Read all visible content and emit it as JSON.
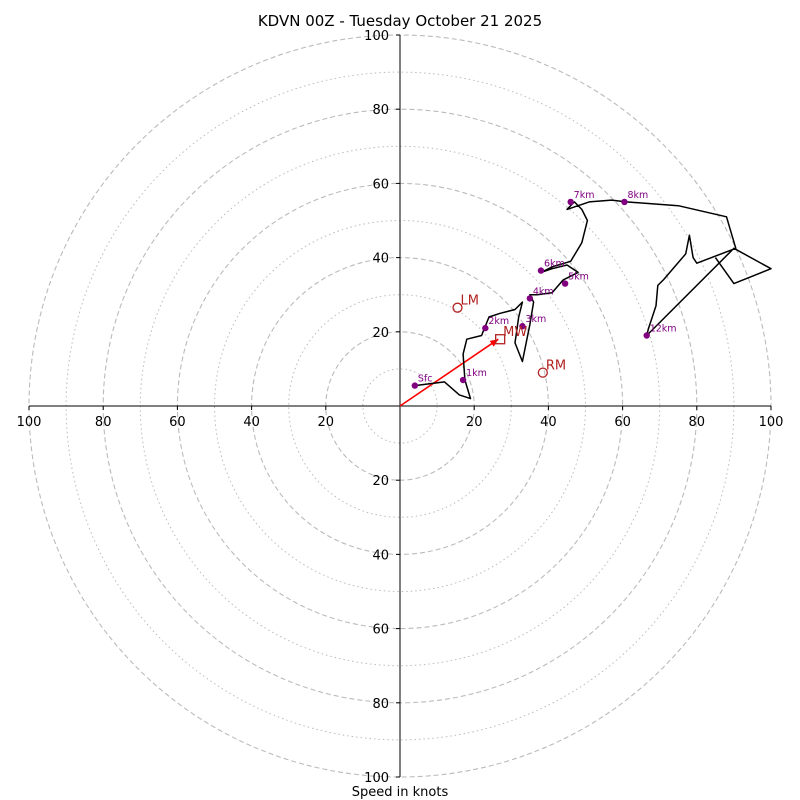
{
  "chart_data": {
    "type": "hodograph",
    "title": "KDVN 00Z - Tuesday October 21 2025",
    "xlabel": "Speed in knots",
    "range": [
      -100,
      100
    ],
    "rings_major": [
      20,
      40,
      60,
      80,
      100
    ],
    "rings_minor": [
      10,
      30,
      50,
      70,
      90
    ],
    "x_ticks": [
      {
        "value": -100,
        "label": "100"
      },
      {
        "value": -80,
        "label": "80"
      },
      {
        "value": -60,
        "label": "60"
      },
      {
        "value": -40,
        "label": "40"
      },
      {
        "value": -20,
        "label": "20"
      },
      {
        "value": 20,
        "label": "20"
      },
      {
        "value": 40,
        "label": "40"
      },
      {
        "value": 60,
        "label": "60"
      },
      {
        "value": 80,
        "label": "80"
      },
      {
        "value": 100,
        "label": "100"
      }
    ],
    "y_ticks": [
      {
        "value": 100,
        "label": "100"
      },
      {
        "value": 80,
        "label": "80"
      },
      {
        "value": 60,
        "label": "60"
      },
      {
        "value": 40,
        "label": "40"
      },
      {
        "value": 20,
        "label": "20"
      },
      {
        "value": -20,
        "label": "20"
      },
      {
        "value": -40,
        "label": "40"
      },
      {
        "value": -60,
        "label": "60"
      },
      {
        "value": -80,
        "label": "80"
      },
      {
        "value": -100,
        "label": "100"
      }
    ],
    "trace": [
      [
        4,
        5.5
      ],
      [
        12,
        6.5
      ],
      [
        16,
        3
      ],
      [
        19,
        2
      ],
      [
        17.5,
        7
      ],
      [
        17,
        14
      ],
      [
        18,
        18
      ],
      [
        22,
        19
      ],
      [
        24,
        24
      ],
      [
        27,
        25
      ],
      [
        31,
        26
      ],
      [
        33,
        28
      ],
      [
        32,
        24
      ],
      [
        31,
        17
      ],
      [
        33,
        12
      ],
      [
        35,
        22
      ],
      [
        36,
        28
      ],
      [
        35,
        30
      ],
      [
        37,
        30
      ],
      [
        41,
        30.5
      ],
      [
        44,
        34
      ],
      [
        48,
        36
      ],
      [
        45,
        38
      ],
      [
        41,
        37
      ],
      [
        38,
        36
      ],
      [
        41,
        37.5
      ],
      [
        46,
        39
      ],
      [
        49,
        44
      ],
      [
        50.5,
        50
      ],
      [
        49,
        53
      ],
      [
        47,
        55
      ],
      [
        45,
        53
      ],
      [
        51,
        55
      ],
      [
        57,
        55.5
      ],
      [
        61,
        55
      ],
      [
        75,
        54
      ],
      [
        88,
        51
      ],
      [
        90.5,
        42.5
      ],
      [
        80,
        38.5
      ],
      [
        79,
        40
      ],
      [
        78,
        46
      ],
      [
        77,
        41
      ],
      [
        71,
        34
      ],
      [
        69.5,
        32.5
      ],
      [
        69,
        27
      ],
      [
        67,
        21
      ],
      [
        66.5,
        19
      ],
      [
        90,
        42.5
      ],
      [
        100,
        37
      ],
      [
        90,
        33
      ],
      [
        85,
        40
      ]
    ],
    "markers": [
      {
        "label": "Sfc",
        "u": 4,
        "v": 5.5
      },
      {
        "label": "1km",
        "u": 17,
        "v": 7
      },
      {
        "label": "2km",
        "u": 23,
        "v": 21
      },
      {
        "label": "3km",
        "u": 33,
        "v": 21.5
      },
      {
        "label": "4km",
        "u": 35,
        "v": 29
      },
      {
        "label": "5km",
        "u": 44.5,
        "v": 33
      },
      {
        "label": "6km",
        "u": 38,
        "v": 36.5
      },
      {
        "label": "7km",
        "u": 46,
        "v": 55
      },
      {
        "label": "8km",
        "u": 60.5,
        "v": 55
      },
      {
        "label": "12km",
        "u": 66.5,
        "v": 19
      }
    ],
    "storm_motions": [
      {
        "label": "LM",
        "shape": "circle",
        "u": 15.5,
        "v": 26.5
      },
      {
        "label": "RM",
        "shape": "circle",
        "u": 38.5,
        "v": 9
      },
      {
        "label": "MW",
        "shape": "square",
        "u": 27,
        "v": 18
      }
    ],
    "arrow": {
      "from": [
        0,
        0
      ],
      "to": [
        26.5,
        18
      ]
    },
    "colors": {
      "trace": "#000000",
      "marker": "#800080",
      "motion": "#b22222",
      "arrow": "#ff0000",
      "grid": "#bbbbbb",
      "axis": "#000000"
    }
  }
}
